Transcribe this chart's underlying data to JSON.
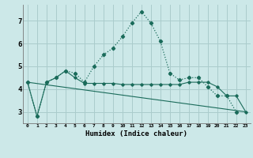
{
  "xlabel": "Humidex (Indice chaleur)",
  "ylabel": "",
  "background_color": "#cce8e8",
  "grid_color": "#aacccc",
  "line_color": "#1a6b5a",
  "x_values": [
    0,
    1,
    2,
    3,
    4,
    5,
    6,
    7,
    8,
    9,
    10,
    11,
    12,
    13,
    14,
    15,
    16,
    17,
    18,
    19,
    20,
    21,
    22,
    23
  ],
  "series1": [
    4.3,
    2.8,
    4.3,
    4.5,
    4.8,
    4.7,
    4.3,
    5.0,
    5.5,
    5.8,
    6.3,
    6.9,
    7.4,
    6.9,
    6.1,
    4.7,
    4.4,
    4.5,
    4.5,
    4.1,
    3.7,
    3.7,
    3.0,
    null
  ],
  "series2": [
    4.3,
    2.8,
    4.3,
    4.5,
    4.8,
    4.5,
    4.25,
    4.25,
    4.25,
    4.25,
    4.2,
    4.2,
    4.2,
    4.2,
    4.2,
    4.2,
    4.2,
    4.3,
    4.3,
    4.3,
    4.1,
    3.7,
    3.7,
    3.0
  ],
  "series3": [
    4.3,
    null,
    null,
    null,
    null,
    null,
    null,
    null,
    null,
    null,
    null,
    null,
    null,
    null,
    null,
    null,
    null,
    null,
    null,
    null,
    null,
    null,
    null,
    3.0
  ],
  "ylim": [
    2.5,
    7.7
  ],
  "yticks": [
    3,
    4,
    5,
    6,
    7
  ],
  "xticks": [
    0,
    1,
    2,
    3,
    4,
    5,
    6,
    7,
    8,
    9,
    10,
    11,
    12,
    13,
    14,
    15,
    16,
    17,
    18,
    19,
    20,
    21,
    22,
    23
  ]
}
